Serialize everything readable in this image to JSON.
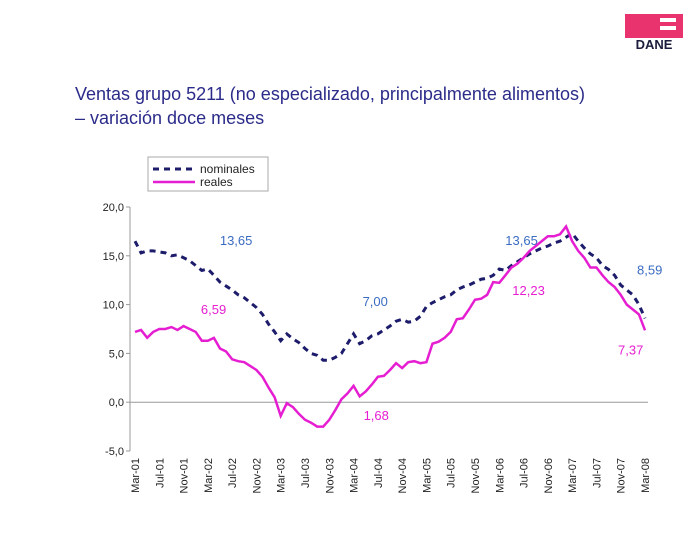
{
  "logo": "DANE",
  "chart_data": {
    "type": "line",
    "title": "Ventas grupo 5211 (no especializado, principalmente alimentos)",
    "subtitle": "– variación doce meses",
    "categories": [
      "Mar-01",
      null,
      null,
      null,
      "Jul-01",
      null,
      null,
      null,
      "Nov-01",
      null,
      null,
      null,
      "Mar-02",
      null,
      null,
      null,
      "Jul-02",
      null,
      null,
      null,
      "Nov-02",
      null,
      null,
      null,
      "Mar-03",
      null,
      null,
      null,
      "Jul-03",
      null,
      null,
      null,
      "Nov-03",
      null,
      null,
      null,
      "Mar-04",
      null,
      null,
      null,
      "Jul-04",
      null,
      null,
      null,
      "Nov-04",
      null,
      null,
      null,
      "Mar-05",
      null,
      null,
      null,
      "Jul-05",
      null,
      null,
      null,
      "Nov-05",
      null,
      null,
      null,
      "Mar-06",
      null,
      null,
      null,
      "Jul-06",
      null,
      null,
      null,
      "Nov-06",
      null,
      null,
      null,
      "Mar-07",
      null,
      null,
      null,
      "Jul-07",
      null,
      null,
      null,
      "Nov-07",
      null,
      null,
      null,
      "Mar-08"
    ],
    "series": [
      {
        "name": "nominales",
        "color": "#1c1c6b",
        "dashed": true,
        "values": [
          16.5,
          15.3,
          15.5,
          15.5,
          15.4,
          15.3,
          15.0,
          15.1,
          14.8,
          14.5,
          14.0,
          13.5,
          13.65,
          13.0,
          12.3,
          11.9,
          11.5,
          11.0,
          10.7,
          10.2,
          9.7,
          9.0,
          8.0,
          7.2,
          6.3,
          7.0,
          6.5,
          6.1,
          5.5,
          5.0,
          4.8,
          4.3,
          4.3,
          4.6,
          5.0,
          6.0,
          7.0,
          6.0,
          6.3,
          6.8,
          7.0,
          7.4,
          7.8,
          8.3,
          8.5,
          8.2,
          8.3,
          8.8,
          9.8,
          10.2,
          10.5,
          10.8,
          11.0,
          11.5,
          11.8,
          12.0,
          12.3,
          12.6,
          12.7,
          13.0,
          13.65,
          13.5,
          14.0,
          14.4,
          14.8,
          15.2,
          15.5,
          15.8,
          16.0,
          16.3,
          16.5,
          16.9,
          17.3,
          16.5,
          15.8,
          15.2,
          14.8,
          14.0,
          13.6,
          13.0,
          12.0,
          11.5,
          11.0,
          10.0,
          8.59
        ],
        "value_labels": [
          null,
          null,
          null,
          null,
          null,
          null,
          null,
          null,
          null,
          null,
          null,
          null,
          "13,65",
          null,
          null,
          null,
          null,
          null,
          null,
          null,
          null,
          null,
          null,
          null,
          null,
          null,
          null,
          null,
          null,
          null,
          null,
          null,
          null,
          null,
          null,
          null,
          "7,00",
          null,
          null,
          null,
          null,
          null,
          null,
          null,
          null,
          null,
          null,
          null,
          null,
          null,
          null,
          null,
          null,
          null,
          null,
          null,
          null,
          null,
          null,
          null,
          "13,65",
          null,
          null,
          null,
          null,
          null,
          null,
          null,
          null,
          null,
          null,
          null,
          null,
          null,
          null,
          null,
          null,
          null,
          null,
          null,
          null,
          null,
          null,
          null,
          "8,59"
        ],
        "label_color": "#3a6cc2"
      },
      {
        "name": "reales",
        "color": "#e61ed2",
        "dashed": false,
        "values": [
          7.2,
          7.4,
          6.6,
          7.2,
          7.5,
          7.5,
          7.7,
          7.4,
          7.8,
          7.5,
          7.2,
          6.3,
          6.3,
          6.59,
          5.5,
          5.2,
          4.4,
          4.2,
          4.1,
          3.7,
          3.3,
          2.6,
          1.5,
          0.5,
          -1.4,
          -0.1,
          -0.5,
          -1.2,
          -1.8,
          -2.1,
          -2.5,
          -2.5,
          -1.8,
          -0.8,
          0.3,
          0.9,
          1.68,
          0.6,
          1.1,
          1.8,
          2.6,
          2.7,
          3.3,
          4.0,
          3.5,
          4.1,
          4.2,
          4.0,
          4.1,
          6.0,
          6.2,
          6.6,
          7.2,
          8.5,
          8.6,
          9.5,
          10.5,
          10.6,
          11.0,
          12.3,
          12.23,
          13.0,
          13.8,
          14.2,
          14.8,
          15.5,
          16.0,
          16.5,
          17.0,
          17.0,
          17.2,
          18.0,
          16.5,
          15.5,
          14.8,
          13.8,
          13.8,
          13.0,
          12.3,
          11.8,
          11.0,
          10.0,
          9.5,
          9.0,
          7.37
        ],
        "value_labels": [
          null,
          null,
          null,
          null,
          null,
          null,
          null,
          null,
          null,
          null,
          null,
          null,
          null,
          "6,59",
          null,
          null,
          null,
          null,
          null,
          null,
          null,
          null,
          null,
          null,
          null,
          null,
          null,
          null,
          null,
          null,
          null,
          null,
          null,
          null,
          null,
          null,
          "1,68",
          null,
          null,
          null,
          null,
          null,
          null,
          null,
          null,
          null,
          null,
          null,
          null,
          null,
          null,
          null,
          null,
          null,
          null,
          null,
          null,
          null,
          null,
          null,
          "12,23",
          null,
          null,
          null,
          null,
          null,
          null,
          null,
          null,
          null,
          null,
          null,
          null,
          null,
          null,
          null,
          null,
          null,
          null,
          null,
          null,
          null,
          null,
          null,
          "7,37"
        ],
        "label_color": "#e61ed2"
      }
    ],
    "ylim": [
      -5,
      20
    ],
    "yticks": [
      {
        "value": -5,
        "label": "-5,0"
      },
      {
        "value": 0,
        "label": "0,0"
      },
      {
        "value": 5,
        "label": "5,0"
      },
      {
        "value": 10,
        "label": "10,0"
      },
      {
        "value": 15,
        "label": "15,0"
      },
      {
        "value": 20,
        "label": "20,0"
      }
    ],
    "legend": "top-left"
  }
}
